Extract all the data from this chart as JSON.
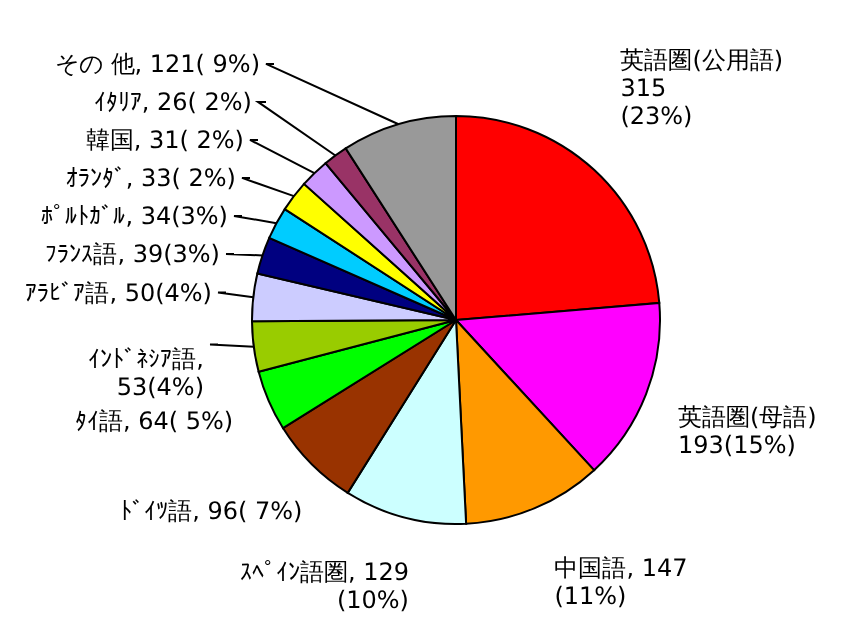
{
  "chart_data": {
    "type": "pie",
    "categories": [
      "英語圏(公用語)",
      "英語圏(母語)",
      "中国語",
      "ｽﾍﾟｲﾝ語圏",
      "ﾄﾞｲﾂ語",
      "ﾀｲ語",
      "ｲﾝﾄﾞﾈｼｱ語",
      "ｱﾗﾋﾞｱ語",
      "ﾌﾗﾝｽ語",
      "ﾎﾟﾙﾄｶﾞﾙ",
      "ｵﾗﾝﾀﾞ",
      "韓国",
      "ｲﾀﾘｱ",
      "その 他"
    ],
    "values": [
      315,
      193,
      147,
      129,
      96,
      64,
      53,
      50,
      39,
      34,
      33,
      31,
      26,
      121
    ],
    "colors": [
      "#ff0000",
      "#ff00ff",
      "#ff9900",
      "#ccffff",
      "#993300",
      "#00ff00",
      "#99cc00",
      "#ccccff",
      "#000080",
      "#00ccff",
      "#ffff00",
      "#cc99ff",
      "#993366",
      "#999999"
    ],
    "value_labels": [
      "\n315\n(23%)",
      "\n193(15%)",
      ", 147\n(11%)",
      ", 129\n(10%)",
      ", 96( 7%)",
      ", 64( 5%)",
      ",\n53(4%)",
      ", 50(4%)",
      ", 39(3%)",
      ", 34(3%)",
      ", 33( 2%)",
      ", 31( 2%)",
      ", 26( 2%)",
      ", 121( 9%)"
    ]
  }
}
